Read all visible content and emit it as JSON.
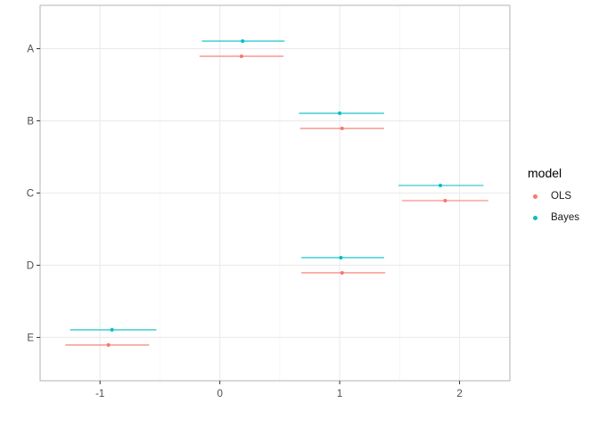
{
  "chart_data": {
    "type": "scatter",
    "title": "",
    "xlabel": "",
    "ylabel": "",
    "xlim": [
      -1.5,
      2.42
    ],
    "x_ticks": [
      -1,
      0,
      1,
      2
    ],
    "x_tick_labels": [
      "-1",
      "0",
      "1",
      "2"
    ],
    "categories": [
      "A",
      "B",
      "C",
      "D",
      "E"
    ],
    "grid": true,
    "legend": {
      "title": "model",
      "placement": "right"
    },
    "series": [
      {
        "name": "OLS",
        "color": "#F8766D",
        "estimate": [
          0.18,
          1.02,
          1.88,
          1.02,
          -0.93
        ],
        "lower": [
          -0.17,
          0.67,
          1.52,
          0.68,
          -1.29
        ],
        "upper": [
          0.53,
          1.37,
          2.24,
          1.38,
          -0.59
        ]
      },
      {
        "name": "Bayes",
        "color": "#00BFC4",
        "estimate": [
          0.19,
          1.0,
          1.84,
          1.01,
          -0.9
        ],
        "lower": [
          -0.15,
          0.66,
          1.49,
          0.68,
          -1.25
        ],
        "upper": [
          0.54,
          1.37,
          2.2,
          1.37,
          -0.53
        ]
      }
    ]
  }
}
